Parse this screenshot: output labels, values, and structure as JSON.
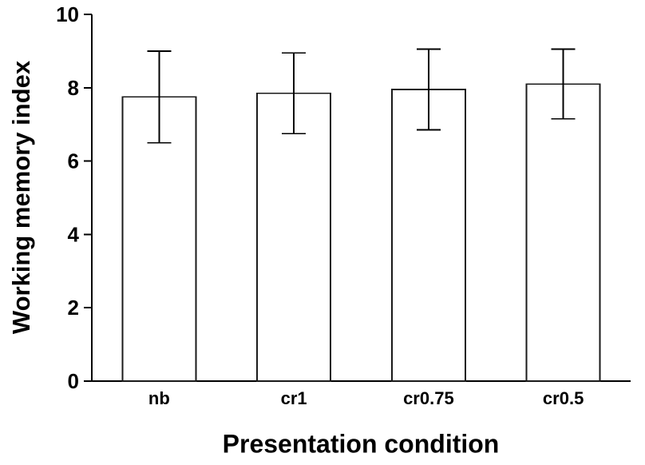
{
  "chart_data": {
    "type": "bar",
    "title": "",
    "xlabel": "Presentation condition",
    "ylabel": "Working memory index",
    "categories": [
      "nb",
      "cr1",
      "cr0.75",
      "cr0.5"
    ],
    "values": [
      7.75,
      7.85,
      7.95,
      8.1
    ],
    "errors": [
      1.25,
      1.1,
      1.1,
      0.95
    ],
    "ylim": [
      0,
      10
    ],
    "yticks": [
      0,
      2,
      4,
      6,
      8,
      10
    ],
    "grid": false,
    "legend": false,
    "colors": {
      "bar_fill": "#ffffff",
      "bar_stroke": "#1a1a1a",
      "axis": "#000000",
      "error_bar": "#1a1a1a",
      "background": "#ffffff",
      "text": "#000000"
    }
  }
}
